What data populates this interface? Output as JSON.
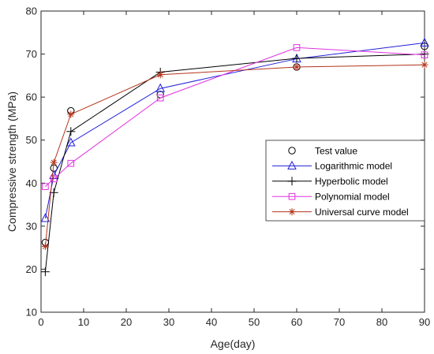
{
  "chart_data": {
    "type": "line",
    "title": "",
    "xlabel": "Age(day)",
    "ylabel": "Compressive strength (MPa)",
    "xlim": [
      0,
      90
    ],
    "ylim": [
      10,
      80
    ],
    "xticks": [
      0,
      10,
      20,
      30,
      40,
      50,
      60,
      70,
      80,
      90
    ],
    "yticks": [
      10,
      20,
      30,
      40,
      50,
      60,
      70,
      80
    ],
    "grid": false,
    "legend_position": "right",
    "series": [
      {
        "name": "Test value",
        "marker": "circle",
        "line": false,
        "color": "#000000",
        "x": [
          1,
          3,
          7,
          28,
          60,
          90
        ],
        "y": [
          26.2,
          43.5,
          56.8,
          60.6,
          67.0,
          71.8
        ]
      },
      {
        "name": "Logarithmic model",
        "marker": "triangle",
        "line": true,
        "color": "#1f1fd9",
        "x": [
          1,
          3,
          7,
          28,
          60,
          90
        ],
        "y": [
          31.8,
          41.8,
          49.4,
          62.0,
          68.9,
          72.6
        ]
      },
      {
        "name": "Hyperbolic model",
        "marker": "plus",
        "line": true,
        "color": "#000000",
        "x": [
          1,
          3,
          7,
          28,
          60,
          90
        ],
        "y": [
          19.4,
          37.8,
          52.0,
          65.8,
          69.0,
          70.0
        ]
      },
      {
        "name": "Polynomial model",
        "marker": "square",
        "line": true,
        "color": "#e032e0",
        "x": [
          1,
          3,
          7,
          28,
          60,
          90
        ],
        "y": [
          39.2,
          41.0,
          44.6,
          59.8,
          71.5,
          69.8
        ]
      },
      {
        "name": "Universal curve model",
        "marker": "asterisk",
        "line": true,
        "color": "#b5331c",
        "x": [
          1,
          3,
          7,
          28,
          60,
          90
        ],
        "y": [
          25.3,
          44.8,
          56.0,
          65.2,
          67.0,
          67.5
        ]
      }
    ]
  }
}
